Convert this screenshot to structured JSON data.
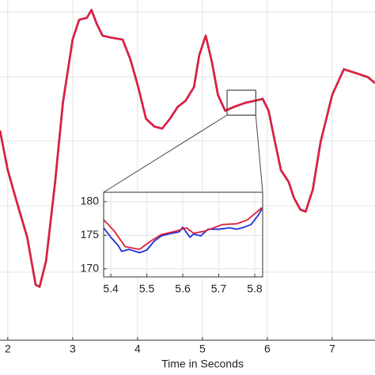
{
  "chart_data": [
    {
      "type": "line",
      "xlabel": "Time in Seconds",
      "xlim": [
        1.88,
        7.66
      ],
      "ylim": [
        55,
        227
      ],
      "xticks": [
        2,
        3,
        4,
        5,
        6,
        7
      ],
      "grid": true,
      "x": [
        1.88,
        2,
        2.12,
        2.3,
        2.43,
        2.49,
        2.59,
        2.73,
        2.85,
        3,
        3.1,
        3.22,
        3.29,
        3.37,
        3.46,
        3.59,
        3.77,
        3.89,
        4.01,
        4.13,
        4.26,
        4.38,
        4.5,
        4.62,
        4.74,
        4.87,
        4.95,
        5.05,
        5.15,
        5.24,
        5.35,
        5.49,
        5.66,
        5.8,
        5.93,
        6.02,
        6.12,
        6.21,
        6.33,
        6.41,
        6.51,
        6.59,
        6.7,
        6.82,
        7,
        7.18,
        7.37,
        7.55,
        7.66
      ],
      "series": [
        {
          "color": "#1f2fd6",
          "values": [
            161,
            141,
            127,
            107,
            83,
            82,
            95,
            135,
            175,
            207,
            217,
            218,
            222,
            215,
            209,
            208,
            207,
            197,
            183,
            167,
            163,
            162,
            167,
            173,
            176,
            183,
            199,
            209,
            195,
            179,
            171,
            173,
            175,
            176,
            177,
            171,
            155,
            141,
            135,
            127,
            121,
            120,
            131,
            155,
            179,
            192,
            190,
            188,
            185
          ]
        },
        {
          "color": "#e0203a",
          "values": [
            161,
            141,
            127,
            107,
            83,
            82,
            95,
            135,
            175,
            207,
            217,
            218,
            222,
            215,
            209,
            208,
            207,
            197,
            183,
            167,
            163,
            162,
            167,
            173,
            176,
            183,
            199,
            209,
            195,
            179,
            171,
            173,
            175,
            176,
            177,
            171,
            155,
            141,
            135,
            127,
            121,
            120,
            131,
            155,
            179,
            192,
            190,
            188,
            185
          ]
        }
      ]
    },
    {
      "type": "line",
      "xlim": [
        5.38,
        5.822
      ],
      "ylim": [
        168.8,
        181.4
      ],
      "xticks": [
        5.4,
        5.5,
        5.6,
        5.7,
        5.8
      ],
      "yticks": [
        170,
        175,
        180
      ],
      "grid": true,
      "series": [
        {
          "color": "#1f2fd6",
          "x": [
            5.38,
            5.4,
            5.42,
            5.43,
            5.45,
            5.48,
            5.5,
            5.52,
            5.54,
            5.56,
            5.59,
            5.6,
            5.62,
            5.63,
            5.65,
            5.67,
            5.7,
            5.73,
            5.75,
            5.77,
            5.79,
            5.81,
            5.82
          ],
          "values": [
            176.1,
            174.7,
            173.5,
            172.6,
            172.9,
            172.4,
            172.8,
            174.1,
            174.9,
            175.2,
            175.5,
            176.2,
            174.7,
            175.2,
            174.9,
            175.9,
            175.9,
            176.1,
            175.9,
            176.2,
            176.6,
            178,
            178.9
          ]
        },
        {
          "color": "#e0203a",
          "x": [
            5.38,
            5.41,
            5.44,
            5.48,
            5.51,
            5.54,
            5.58,
            5.61,
            5.63,
            5.66,
            5.71,
            5.75,
            5.78,
            5.82
          ],
          "values": [
            177.3,
            175.6,
            173.3,
            172.9,
            174.1,
            175.1,
            175.6,
            176.1,
            175.3,
            175.6,
            176.6,
            176.7,
            177.3,
            179.1
          ]
        }
      ]
    }
  ]
}
